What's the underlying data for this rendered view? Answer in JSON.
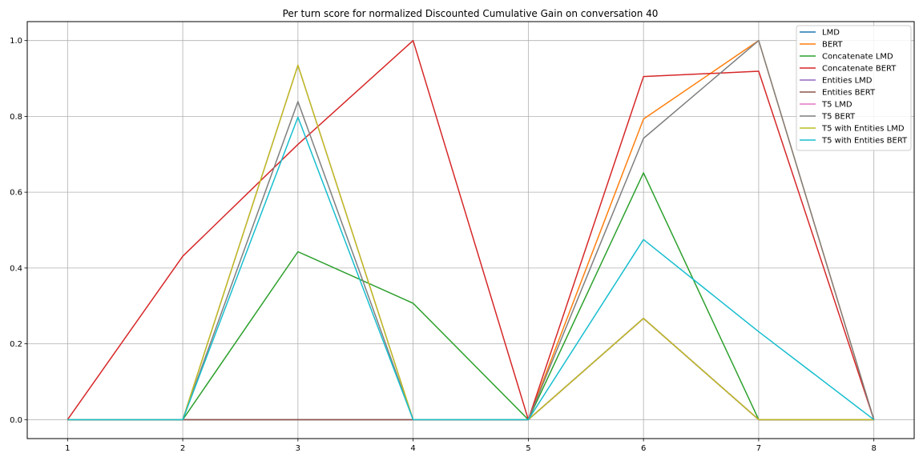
{
  "chart_data": {
    "type": "line",
    "title": "Per turn score for normalized Discounted Cumulative Gain on conversation 40",
    "xlabel": "",
    "ylabel": "",
    "x": [
      1,
      2,
      3,
      4,
      5,
      6,
      7,
      8
    ],
    "xlim": [
      0.65,
      8.35
    ],
    "ylim": [
      -0.05,
      1.05
    ],
    "xticks": [
      "1",
      "2",
      "3",
      "4",
      "5",
      "6",
      "7",
      "8"
    ],
    "yticks": [
      "0.0",
      "0.2",
      "0.4",
      "0.6",
      "0.8",
      "1.0"
    ],
    "grid": true,
    "legend_position": "top-right",
    "series": [
      {
        "name": "LMD",
        "color": "#1f77b4",
        "values": [
          0,
          0,
          0,
          0,
          0,
          0.267,
          0,
          0
        ]
      },
      {
        "name": "BERT",
        "color": "#ff7f0e",
        "values": [
          0,
          0,
          0,
          0,
          0,
          0.793,
          1.0,
          0
        ]
      },
      {
        "name": "Concatenate LMD",
        "color": "#2ca02c",
        "values": [
          0,
          0,
          0.443,
          0.307,
          0,
          0.651,
          0,
          0
        ]
      },
      {
        "name": "Concatenate BERT",
        "color": "#d62728",
        "values": [
          0,
          0.431,
          0.726,
          1.0,
          0,
          0.905,
          0.919,
          0
        ]
      },
      {
        "name": "Entities LMD",
        "color": "#9467bd",
        "values": [
          0,
          0,
          0,
          0,
          0,
          0.267,
          0,
          0
        ]
      },
      {
        "name": "Entities BERT",
        "color": "#8c564b",
        "values": [
          0,
          0,
          0,
          0,
          0,
          0.267,
          0,
          0
        ]
      },
      {
        "name": "T5 LMD",
        "color": "#e377c2",
        "values": [
          0,
          0,
          0.935,
          0,
          0,
          0.267,
          0,
          0
        ]
      },
      {
        "name": "T5 BERT",
        "color": "#7f7f7f",
        "values": [
          0,
          0,
          0.839,
          0,
          0,
          0.742,
          1.0,
          0
        ]
      },
      {
        "name": "T5 with Entities LMD",
        "color": "#bcbd22",
        "values": [
          0,
          0,
          0.935,
          0,
          0,
          0.267,
          0,
          0
        ]
      },
      {
        "name": "T5 with Entities BERT",
        "color": "#17becf",
        "values": [
          0,
          0,
          0.798,
          0,
          0,
          0.475,
          0.232,
          0
        ]
      }
    ]
  }
}
